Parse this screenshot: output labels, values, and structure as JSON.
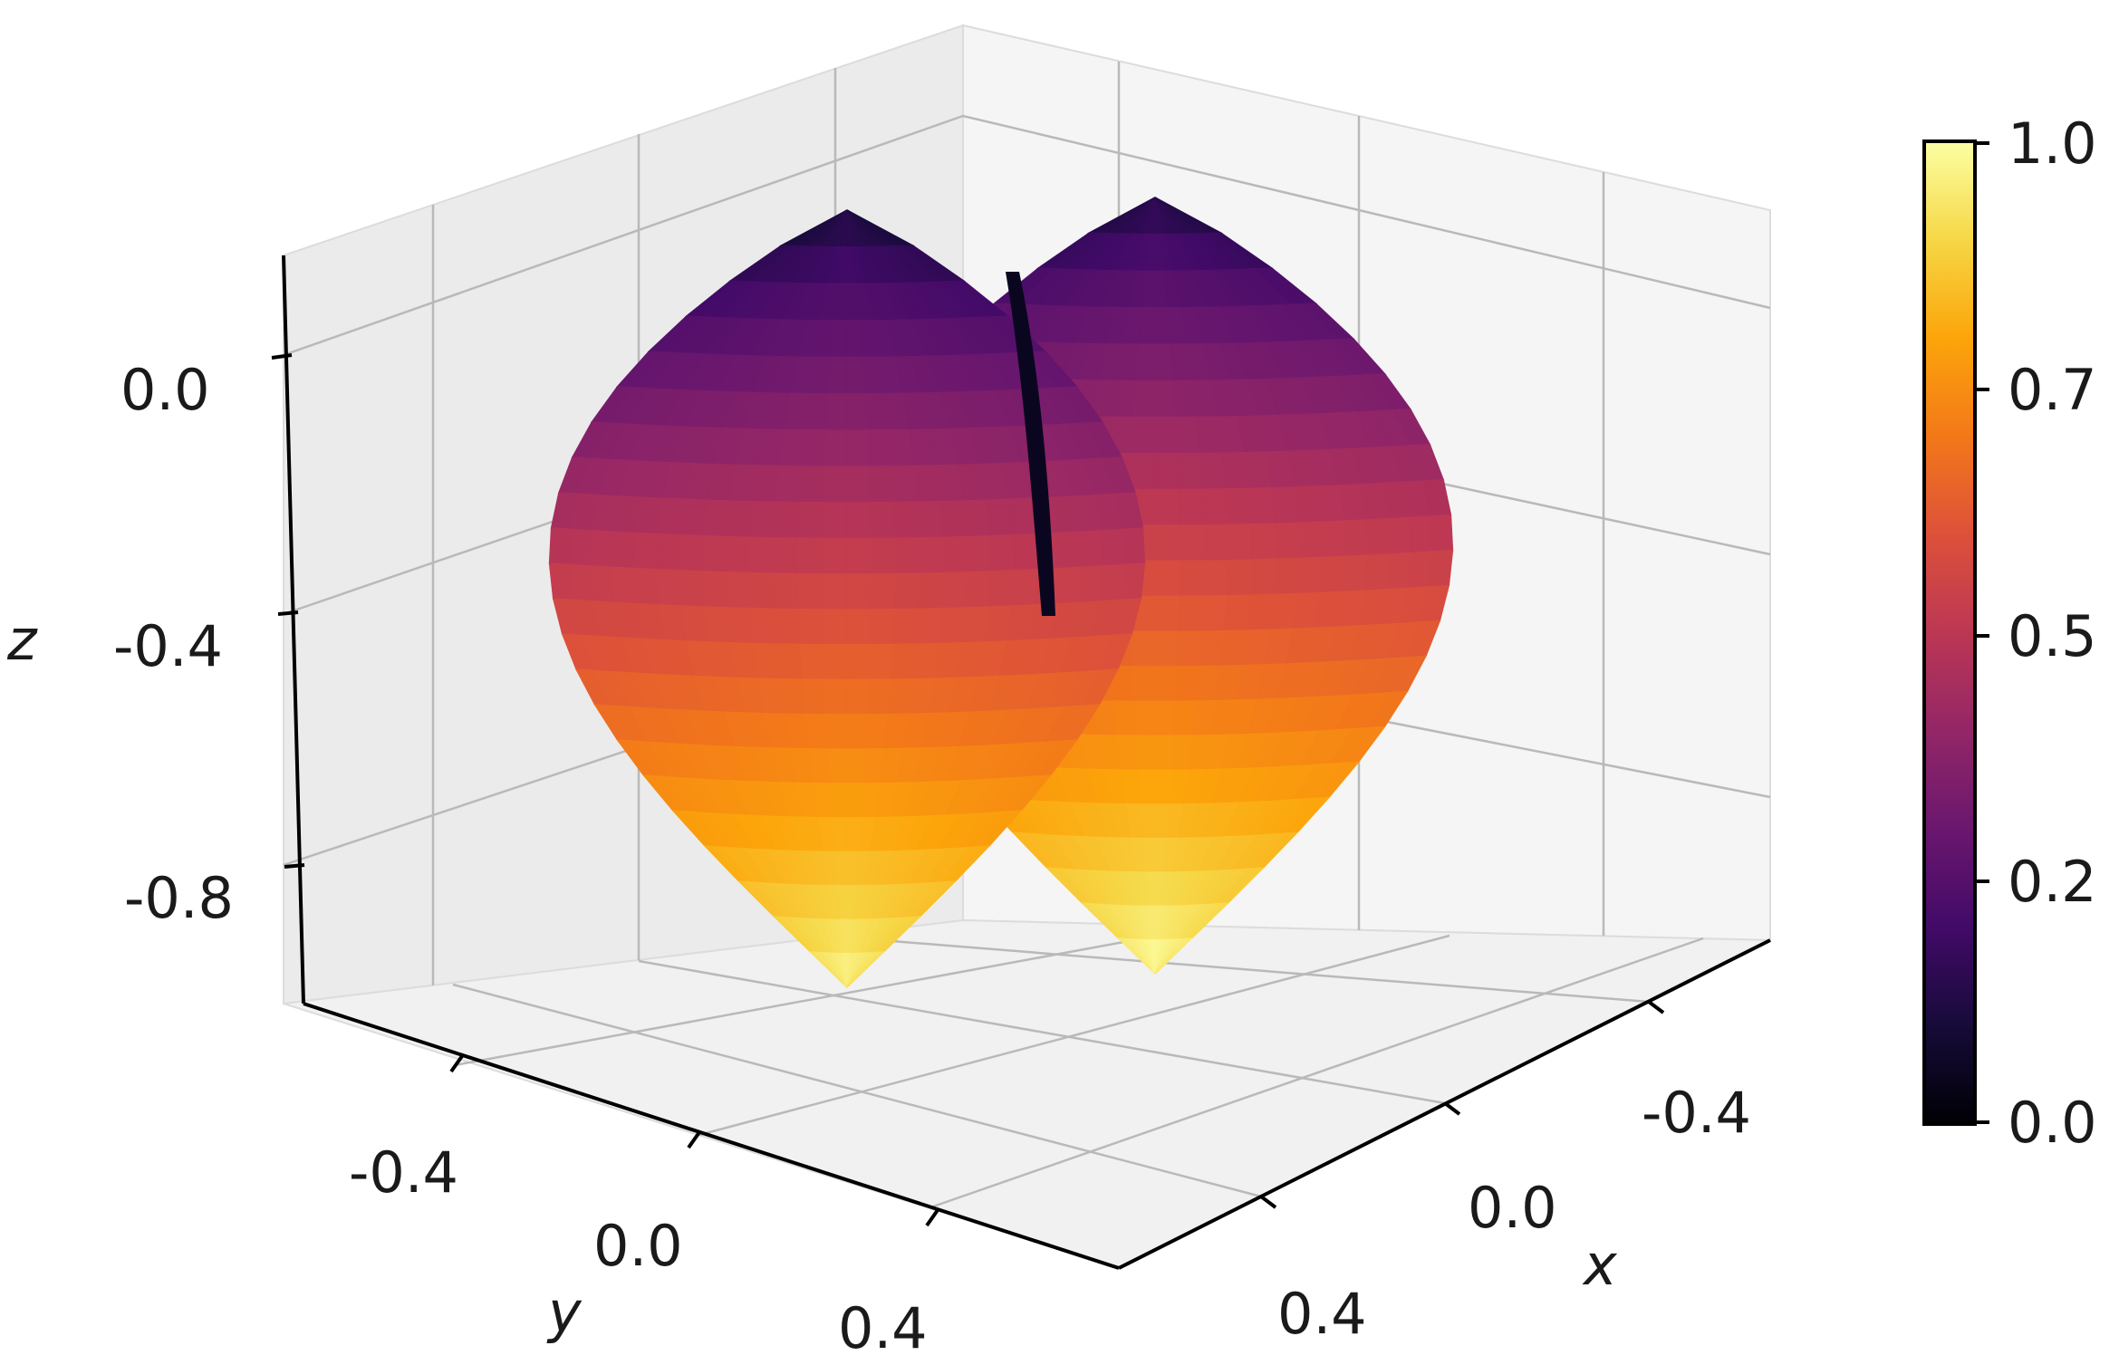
{
  "chart_data": {
    "type": "surface3d",
    "colormap": "inferno",
    "axes": {
      "x": {
        "label": "x",
        "ticks": [
          "-0.4",
          "0.0",
          "0.4"
        ]
      },
      "y": {
        "label": "y",
        "ticks": [
          "-0.4",
          "0.0",
          "0.4"
        ]
      },
      "z": {
        "label": "z",
        "ticks": [
          "0.0",
          "-0.4",
          "-0.8"
        ]
      }
    },
    "colorbar": {
      "ticks": [
        "1.0",
        "0.7",
        "0.5",
        "0.2",
        "0.0"
      ],
      "range": [
        0.0,
        1.0
      ]
    },
    "colors": {
      "pane_left": "#e9e9e9",
      "pane_right": "#f5f5f5",
      "pane_floor": "#f0f0f0",
      "grid": "#b9b9b9"
    }
  }
}
